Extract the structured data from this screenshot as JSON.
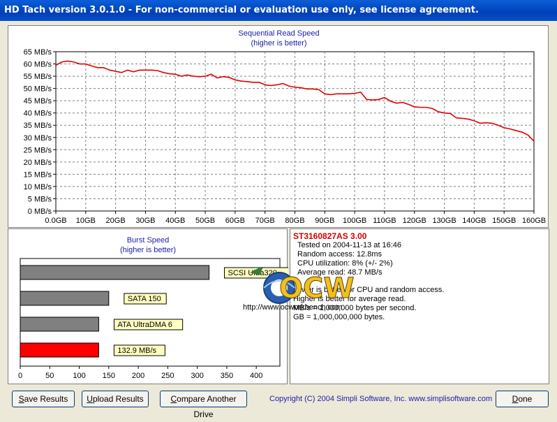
{
  "window": {
    "title": "HD Tach version 3.0.1.0  - For non-commercial or evaluation use only, see license agreement."
  },
  "seq_chart": {
    "title": "Sequential Read Speed",
    "subtitle": "(higher is better)"
  },
  "burst_chart": {
    "title": "Burst Speed",
    "subtitle": "(higher is better)"
  },
  "chart_data": [
    {
      "type": "line",
      "title": "Sequential Read Speed",
      "subtitle": "(higher is better)",
      "xlabel": "",
      "ylabel": "",
      "x_tick_labels": [
        "0.0GB",
        "10GB",
        "20GB",
        "30GB",
        "40GB",
        "50GB",
        "60GB",
        "70GB",
        "80GB",
        "90GB",
        "100GB",
        "110GB",
        "120GB",
        "130GB",
        "140GB",
        "150GB",
        "160GB"
      ],
      "y_tick_labels": [
        "0 MB/s",
        "5 MB/s",
        "10 MB/s",
        "15 MB/s",
        "20 MB/s",
        "25 MB/s",
        "30 MB/s",
        "35 MB/s",
        "40 MB/s",
        "45 MB/s",
        "50 MB/s",
        "55 MB/s",
        "60 MB/s",
        "65 MB/s"
      ],
      "xlim": [
        0,
        160
      ],
      "ylim": [
        0,
        65
      ],
      "grid": true,
      "series": [
        {
          "color": "#e00000",
          "x": [
            0,
            2,
            4,
            6,
            8,
            10,
            12,
            14,
            16,
            18,
            20,
            22,
            24,
            26,
            28,
            30,
            32,
            34,
            36,
            38,
            40,
            42,
            44,
            46,
            48,
            50,
            52,
            54,
            56,
            58,
            60,
            62,
            64,
            66,
            68,
            70,
            72,
            74,
            76,
            78,
            80,
            82,
            84,
            86,
            88,
            90,
            92,
            94,
            96,
            98,
            100,
            102,
            104,
            106,
            108,
            110,
            112,
            114,
            116,
            118,
            120,
            122,
            124,
            126,
            128,
            130,
            132,
            134,
            136,
            138,
            140,
            142,
            144,
            146,
            148,
            150,
            152,
            154,
            156,
            158,
            160
          ],
          "y": [
            59.5,
            60.8,
            61.2,
            60.8,
            60.0,
            60.0,
            59.2,
            58.5,
            58.5,
            57.5,
            57.0,
            56.5,
            57.5,
            56.8,
            57.5,
            57.5,
            57.5,
            57.3,
            56.5,
            56.0,
            55.8,
            55.0,
            55.5,
            55.0,
            54.8,
            55.0,
            55.8,
            54.3,
            54.8,
            54.5,
            53.5,
            53.0,
            52.8,
            52.5,
            52.5,
            51.5,
            51.2,
            51.5,
            52.0,
            51.0,
            50.5,
            50.3,
            49.8,
            49.8,
            49.5,
            47.8,
            47.5,
            47.8,
            47.8,
            47.8,
            48.0,
            48.5,
            45.5,
            45.3,
            45.5,
            46.3,
            44.8,
            44.0,
            44.3,
            43.5,
            42.5,
            42.3,
            42.3,
            41.8,
            40.5,
            40.0,
            39.8,
            38.0,
            37.8,
            37.5,
            36.8,
            35.8,
            36.0,
            35.8,
            35.0,
            34.0,
            33.5,
            32.8,
            32.2,
            31.0,
            28.5
          ]
        }
      ]
    },
    {
      "type": "bar",
      "orientation": "horizontal",
      "title": "Burst Speed",
      "subtitle": "(higher is better)",
      "categories": [
        "SCSI Ultra320",
        "SATA 150",
        "ATA UltraDMA 6",
        "132.9 MB/s"
      ],
      "values": [
        320,
        150,
        133,
        132.9
      ],
      "colors": [
        "#808080",
        "#808080",
        "#808080",
        "#ff0000"
      ],
      "x_tick_labels": [
        "0",
        "50",
        "100",
        "150",
        "200",
        "250",
        "300",
        "350",
        "400"
      ],
      "xlim": [
        0,
        440
      ],
      "grid": false
    }
  ],
  "results": {
    "drive": "ST3160827AS 3.00",
    "lines": [
      "Tested on 2004-11-13 at 16:46",
      "Random access: 12.8ms",
      "CPU utilization: 8% (+/- 2%)",
      "Average read: 48.7 MB/s"
    ],
    "notes": [
      "Lower is better for CPU and random access.",
      "Higher is better for average read.",
      "MB/s = 1,000,000 bytes per second.",
      "GB = 1,000,000,000 bytes."
    ]
  },
  "watermark": {
    "text": "OCW",
    "url": "http://www.ocworkbench.com"
  },
  "buttons": {
    "save": {
      "u": "S",
      "rest": "ave Results"
    },
    "upload": {
      "u": "U",
      "rest": "pload Results"
    },
    "compare": {
      "u": "C",
      "rest": "ompare Another Drive"
    },
    "done": {
      "u": "D",
      "rest": "one"
    }
  },
  "footer": {
    "copyright": "Copyright (C) 2004 Simpli Software, Inc. www.simplisoftware.com"
  },
  "colors": {
    "title_blue": "#1c1ca8",
    "line_red": "#e00000",
    "bar_gray": "#808080",
    "bar_highlight": "#ff0000",
    "label_yellow": "#ffffc0"
  }
}
